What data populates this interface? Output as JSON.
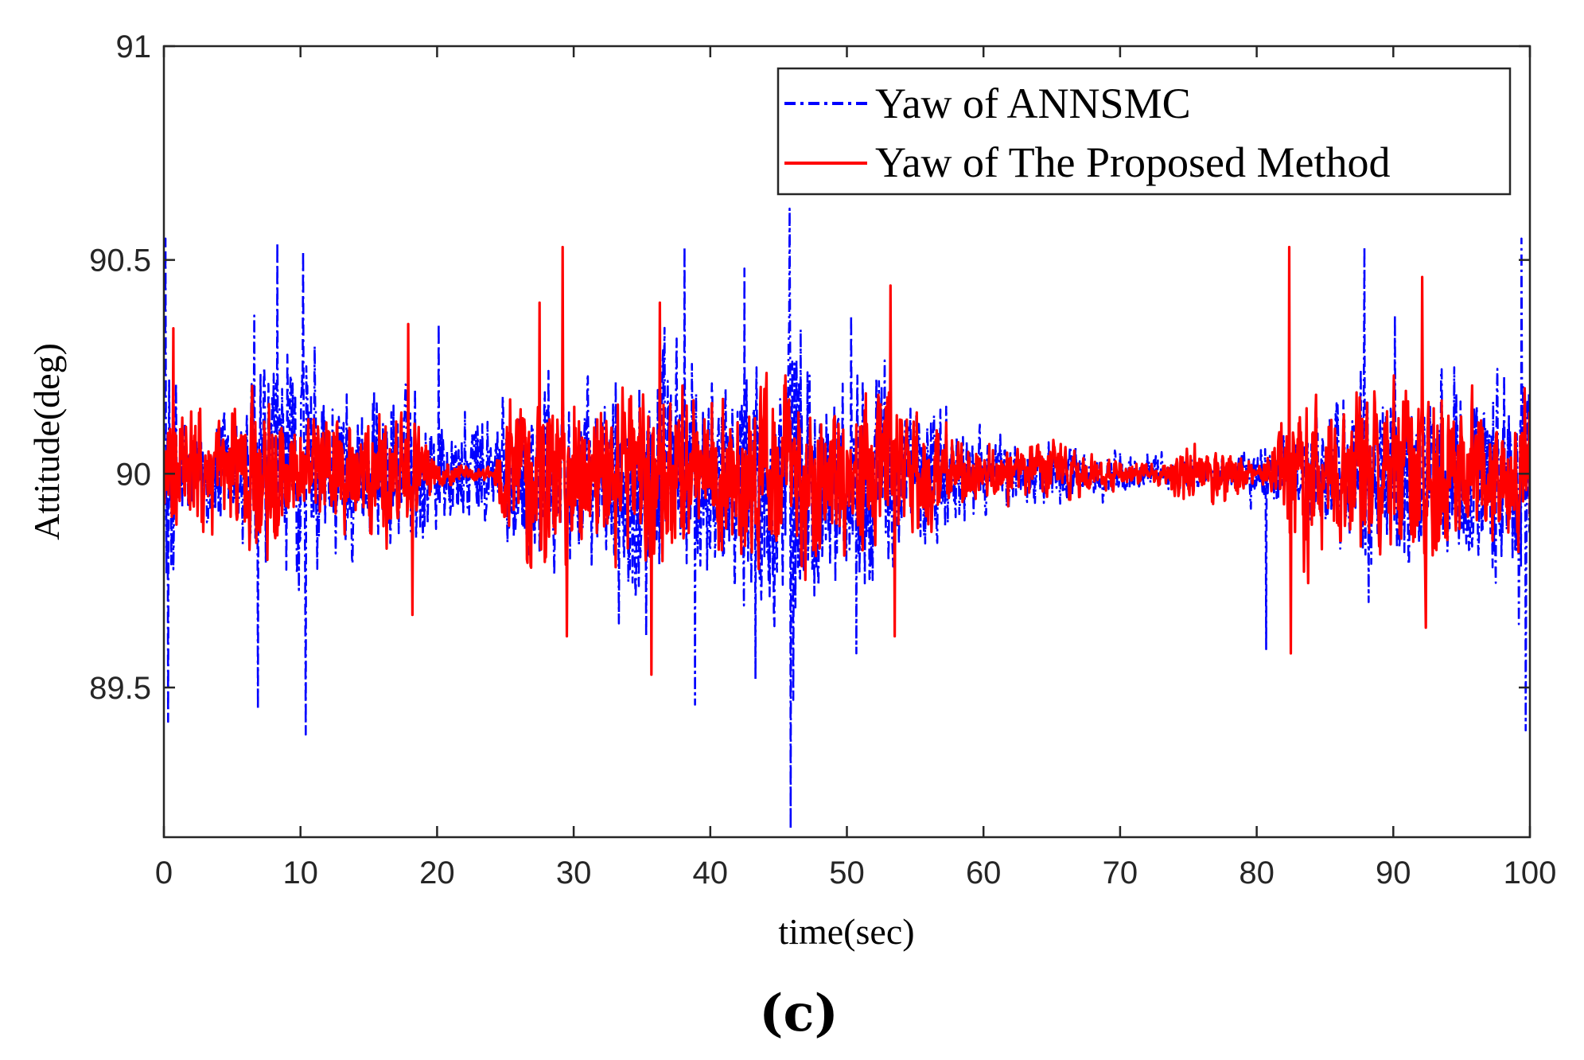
{
  "chart_data": {
    "type": "line",
    "title": "",
    "xlabel": "time(sec)",
    "ylabel": "Attitude(deg)",
    "xlim": [
      0,
      100
    ],
    "ylim": [
      89.15,
      91
    ],
    "xticks": [
      0,
      10,
      20,
      30,
      40,
      50,
      60,
      70,
      80,
      90,
      100
    ],
    "xtick_labels": [
      "0",
      "10",
      "20",
      "30",
      "40",
      "50",
      "60",
      "70",
      "80",
      "90",
      "100"
    ],
    "yticks": [
      89.5,
      90,
      90.5,
      91
    ],
    "ytick_labels": [
      "89.5",
      "90",
      "90.5",
      "91"
    ],
    "grid": false,
    "legend_position": "top-right",
    "panel_label": "(c)",
    "series": [
      {
        "name": "Yaw of ANNSMC",
        "color": "#0000FF",
        "style": "dash-dot",
        "baseline": 90,
        "envelope": [
          [
            0,
            0.55
          ],
          [
            2,
            0.2
          ],
          [
            5,
            0.3
          ],
          [
            8,
            0.5
          ],
          [
            10,
            0.55
          ],
          [
            12,
            0.35
          ],
          [
            15,
            0.3
          ],
          [
            18,
            0.35
          ],
          [
            20,
            0.25
          ],
          [
            22,
            0.22
          ],
          [
            25,
            0.3
          ],
          [
            28,
            0.4
          ],
          [
            30,
            0.32
          ],
          [
            33,
            0.35
          ],
          [
            35,
            0.45
          ],
          [
            38,
            0.45
          ],
          [
            40,
            0.4
          ],
          [
            43,
            0.45
          ],
          [
            45,
            0.5
          ],
          [
            46,
            0.85
          ],
          [
            48,
            0.4
          ],
          [
            50,
            0.45
          ],
          [
            53,
            0.4
          ],
          [
            56,
            0.3
          ],
          [
            60,
            0.15
          ],
          [
            65,
            0.12
          ],
          [
            70,
            0.09
          ],
          [
            75,
            0.06
          ],
          [
            78,
            0.05
          ],
          [
            80,
            0.12
          ],
          [
            82,
            0.15
          ],
          [
            85,
            0.25
          ],
          [
            88,
            0.4
          ],
          [
            90,
            0.35
          ],
          [
            93,
            0.35
          ],
          [
            96,
            0.4
          ],
          [
            98,
            0.45
          ],
          [
            100,
            0.6
          ]
        ],
        "spikes": [
          [
            0.1,
            90.55
          ],
          [
            0.3,
            89.42
          ],
          [
            6.6,
            90.37
          ],
          [
            6.9,
            89.45
          ],
          [
            8.3,
            90.54
          ],
          [
            10.2,
            90.52
          ],
          [
            10.4,
            89.39
          ],
          [
            20.1,
            90.35
          ],
          [
            33.3,
            89.65
          ],
          [
            34.8,
            90.2
          ],
          [
            35.3,
            89.62
          ],
          [
            38.1,
            90.53
          ],
          [
            38.9,
            89.46
          ],
          [
            42.5,
            90.48
          ],
          [
            43.3,
            89.52
          ],
          [
            45.8,
            90.62
          ],
          [
            45.9,
            89.17
          ],
          [
            50.3,
            90.37
          ],
          [
            50.7,
            89.58
          ],
          [
            80.7,
            89.59
          ],
          [
            87.9,
            90.53
          ],
          [
            88.2,
            89.7
          ],
          [
            90.1,
            90.37
          ],
          [
            99.4,
            90.55
          ],
          [
            99.7,
            89.4
          ]
        ]
      },
      {
        "name": "Yaw of The Proposed Method",
        "color": "#FF0000",
        "style": "solid",
        "baseline": 90,
        "envelope": [
          [
            0,
            0.15
          ],
          [
            1,
            0.3
          ],
          [
            4,
            0.2
          ],
          [
            7,
            0.32
          ],
          [
            10,
            0.22
          ],
          [
            13,
            0.2
          ],
          [
            16,
            0.28
          ],
          [
            18,
            0.25
          ],
          [
            20,
            0.05
          ],
          [
            24,
            0.02
          ],
          [
            25,
            0.3
          ],
          [
            28,
            0.35
          ],
          [
            30,
            0.35
          ],
          [
            33,
            0.3
          ],
          [
            36,
            0.4
          ],
          [
            38,
            0.32
          ],
          [
            41,
            0.28
          ],
          [
            44,
            0.38
          ],
          [
            47,
            0.32
          ],
          [
            50,
            0.3
          ],
          [
            53,
            0.35
          ],
          [
            56,
            0.25
          ],
          [
            60,
            0.1
          ],
          [
            64,
            0.12
          ],
          [
            68,
            0.08
          ],
          [
            72,
            0.04
          ],
          [
            75,
            0.1
          ],
          [
            78,
            0.12
          ],
          [
            80,
            0.02
          ],
          [
            81,
            0.1
          ],
          [
            83,
            0.35
          ],
          [
            86,
            0.3
          ],
          [
            89,
            0.3
          ],
          [
            92,
            0.4
          ],
          [
            95,
            0.3
          ],
          [
            100,
            0.25
          ]
        ],
        "spikes": [
          [
            0.7,
            90.34
          ],
          [
            17.9,
            90.35
          ],
          [
            18.2,
            89.67
          ],
          [
            27.5,
            90.4
          ],
          [
            29.2,
            90.53
          ],
          [
            29.5,
            89.62
          ],
          [
            35.7,
            89.53
          ],
          [
            36.3,
            90.4
          ],
          [
            53.2,
            90.44
          ],
          [
            53.5,
            89.62
          ],
          [
            82.4,
            90.53
          ],
          [
            82.5,
            89.58
          ],
          [
            92.1,
            90.46
          ],
          [
            92.4,
            89.64
          ],
          [
            99.6,
            90.2
          ],
          [
            100.0,
            89.9
          ]
        ]
      }
    ]
  }
}
